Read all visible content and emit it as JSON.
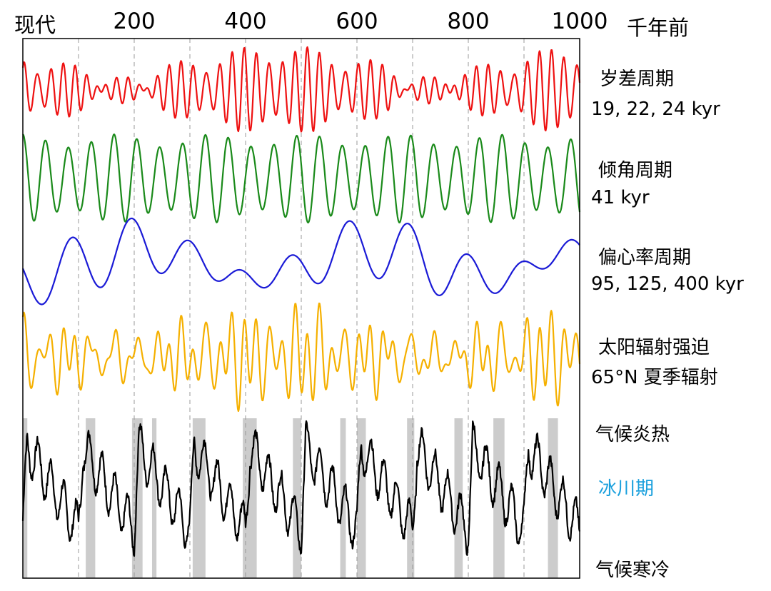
{
  "chart_data": {
    "type": "line",
    "x_axis": {
      "start_label": "现代",
      "unit_label": "千年前",
      "range": [
        0,
        1000
      ],
      "ticks": [
        "200",
        "400",
        "600",
        "800",
        "1000"
      ],
      "gridlines_every": 100
    },
    "series": [
      {
        "key": "precession",
        "name": "岁差周期",
        "periods": "19, 22, 24 kyr",
        "color": "#ee1111"
      },
      {
        "key": "obliquity",
        "name": "倾角周期",
        "periods": "41 kyr",
        "color": "#1a8a1a"
      },
      {
        "key": "eccentricity",
        "name": "偏心率周期",
        "periods": "95, 125, 400 kyr",
        "color": "#1a1ad6"
      },
      {
        "key": "forcing",
        "name": "太阳辐射强迫",
        "periods": "65°N 夏季辐射",
        "color": "#f5b000"
      },
      {
        "key": "climate",
        "color": "#000000"
      }
    ],
    "climate_labels": {
      "warm": "气候炎热",
      "glacial": "冰川期",
      "cold": "气候寒冷"
    },
    "glacial_label_color": "#1aa0dd",
    "glacial_periods": [
      [
        0,
        8
      ],
      [
        113,
        130
      ],
      [
        196,
        215
      ],
      [
        232,
        240
      ],
      [
        305,
        328
      ],
      [
        395,
        420
      ],
      [
        485,
        500
      ],
      [
        570,
        580
      ],
      [
        600,
        616
      ],
      [
        690,
        703
      ],
      [
        775,
        790
      ],
      [
        845,
        865
      ],
      [
        943,
        961
      ]
    ]
  }
}
